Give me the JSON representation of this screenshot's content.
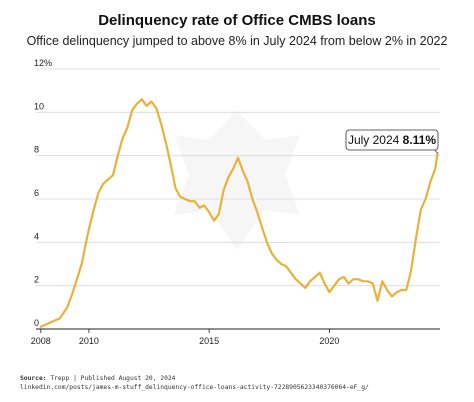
{
  "chart_data": {
    "type": "line",
    "title": "Delinquency rate of Office CMBS loans",
    "subtitle": "Office delinquency jumped to above 8% in July 2024 from below 2% in 2022",
    "xlabel": "",
    "ylabel": "",
    "xlim": [
      2007.8,
      2024.6
    ],
    "ylim": [
      0,
      12
    ],
    "y_ticks": [
      "0",
      "2",
      "4",
      "6",
      "8",
      "10",
      "12%"
    ],
    "x_ticks": [
      "2008",
      "2010",
      "2015",
      "2020"
    ],
    "grid": "horizontal",
    "line_color": "#e8b23a",
    "annotation": {
      "date_text": "July 2024",
      "value_text": "8.11%",
      "x": 2024.5,
      "y": 8.11
    },
    "series": [
      {
        "x": [
          2008.0,
          2008.4,
          2008.8,
          2009.1,
          2009.3,
          2009.5,
          2009.7,
          2009.9,
          2010.0,
          2010.2,
          2010.4,
          2010.6,
          2010.8,
          2011.0,
          2011.2,
          2011.4,
          2011.6,
          2011.8,
          2012.0,
          2012.2,
          2012.4,
          2012.6,
          2012.8,
          2013.0,
          2013.2,
          2013.4,
          2013.6,
          2013.8,
          2014.0,
          2014.2,
          2014.4,
          2014.6,
          2014.8,
          2015.0,
          2015.2,
          2015.4,
          2015.6,
          2015.8,
          2016.0,
          2016.2,
          2016.4,
          2016.6,
          2016.8,
          2017.0,
          2017.2,
          2017.4,
          2017.6,
          2017.8,
          2018.0,
          2018.2,
          2018.4,
          2018.6,
          2018.8,
          2019.0,
          2019.2,
          2019.4,
          2019.6,
          2019.8,
          2020.0,
          2020.2,
          2020.4,
          2020.6,
          2020.8,
          2021.0,
          2021.2,
          2021.4,
          2021.6,
          2021.8,
          2022.0,
          2022.2,
          2022.4,
          2022.6,
          2022.8,
          2023.0,
          2023.2,
          2023.4,
          2023.6,
          2023.8,
          2024.0,
          2024.2,
          2024.4,
          2024.5
        ],
        "y": [
          0.1,
          0.3,
          0.5,
          1.0,
          1.6,
          2.3,
          3.0,
          4.1,
          4.6,
          5.5,
          6.3,
          6.7,
          6.9,
          7.1,
          8.0,
          8.8,
          9.3,
          10.1,
          10.4,
          10.6,
          10.3,
          10.5,
          10.2,
          9.5,
          8.6,
          7.6,
          6.5,
          6.1,
          6.0,
          5.9,
          5.9,
          5.6,
          5.7,
          5.4,
          5.0,
          5.3,
          6.4,
          7.0,
          7.4,
          7.9,
          7.3,
          6.8,
          6.0,
          5.4,
          4.7,
          4.0,
          3.5,
          3.2,
          3.0,
          2.9,
          2.6,
          2.3,
          2.1,
          1.9,
          2.2,
          2.4,
          2.6,
          2.1,
          1.7,
          2.0,
          2.3,
          2.4,
          2.1,
          2.3,
          2.3,
          2.2,
          2.2,
          2.1,
          1.3,
          2.2,
          1.8,
          1.5,
          1.7,
          1.8,
          1.8,
          2.7,
          4.2,
          5.5,
          6.0,
          6.8,
          7.4,
          8.11
        ]
      }
    ]
  },
  "footer": {
    "source_label": "Source:",
    "source_text": "Trepp | Published August 20, 2024",
    "link": "linkedin.com/posts/james-m-stuff_delinquency-office-loans-activity-7228905623340376064-eF_g/"
  }
}
